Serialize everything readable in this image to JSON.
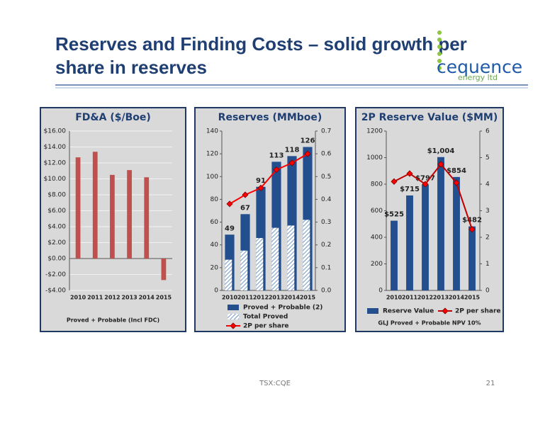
{
  "slide": {
    "title_lines": [
      "Reserves and Finding Costs – solid growth per",
      "share in reserves"
    ],
    "footer": "TSX:CQE",
    "page_number": "21"
  },
  "logo": {
    "name": "cequence",
    "tagline": "energy ltd"
  },
  "chart_data": [
    {
      "type": "bar",
      "title": "FD&A ($/Boe)",
      "xlabel": "Proved + Probable (Incl FDC)",
      "categories": [
        "2010",
        "2011",
        "2012",
        "2013",
        "2014",
        "2015"
      ],
      "values": [
        12.7,
        13.4,
        10.5,
        11.1,
        10.2,
        -2.7
      ],
      "color": "#c0504d",
      "ylim": [
        -4,
        16
      ],
      "yticks": [
        {
          "value": -4,
          "label": "-$4.00"
        },
        {
          "value": -2,
          "label": "-$2.00"
        },
        {
          "value": 0,
          "label": "$0.00"
        },
        {
          "value": 2,
          "label": "$2.00"
        },
        {
          "value": 4,
          "label": "$4.00"
        },
        {
          "value": 6,
          "label": "$6.00"
        },
        {
          "value": 8,
          "label": "$8.00"
        },
        {
          "value": 10,
          "label": "$10.00"
        },
        {
          "value": 12,
          "label": "$12.00"
        },
        {
          "value": 14,
          "label": "$14.00"
        },
        {
          "value": 16,
          "label": "$16.00"
        }
      ],
      "grid": true
    },
    {
      "type": "combo",
      "title": "Reserves (MMboe)",
      "categories": [
        "2010",
        "2011",
        "2012",
        "2013",
        "2014",
        "2015"
      ],
      "series": [
        {
          "name": "Proved + Probable (2)",
          "kind": "bar",
          "color": "#244f8e",
          "values": [
            49,
            67,
            91,
            113,
            118,
            126
          ],
          "data_labels": true
        },
        {
          "name": "Total Proved",
          "kind": "bar",
          "pattern": "hatch",
          "color": "#4f81bd",
          "values": [
            27,
            35,
            46,
            55,
            57,
            62
          ]
        },
        {
          "name": "2P per share",
          "kind": "line",
          "axis": "y2",
          "color": "#ff0000",
          "values": [
            0.38,
            0.42,
            0.45,
            0.53,
            0.56,
            0.6
          ]
        }
      ],
      "ylim": [
        0,
        140
      ],
      "yticks": [
        0,
        20,
        40,
        60,
        80,
        100,
        120,
        140
      ],
      "y2lim": [
        0,
        0.7
      ],
      "y2ticks": [
        {
          "value": 0,
          "label": "0.0"
        },
        0.1,
        0.2,
        0.3,
        0.4,
        0.5,
        0.6,
        0.7
      ],
      "grid": false,
      "legend": "bottom"
    },
    {
      "type": "combo",
      "title": "2P Reserve Value ($MM)",
      "xlabel": "GLJ Proved + Probable NPV 10%",
      "categories": [
        "2010",
        "2011",
        "2012",
        "2013",
        "2014",
        "2015"
      ],
      "series": [
        {
          "name": "Reserve Value",
          "kind": "bar",
          "color": "#244f8e",
          "values": [
            525,
            715,
            797,
            1004,
            854,
            482
          ],
          "value_labels": [
            "$525",
            "$715",
            "$797",
            "$1,004",
            "$854",
            "$482"
          ],
          "data_labels": true
        },
        {
          "name": "2P per share",
          "kind": "line",
          "axis": "y2",
          "color": "#c00000",
          "values": [
            4.1,
            4.4,
            4.0,
            4.75,
            4.05,
            2.3
          ]
        }
      ],
      "ylim": [
        0,
        1200
      ],
      "yticks": [
        0,
        200,
        400,
        600,
        800,
        1000,
        1200
      ],
      "y2lim": [
        0,
        6
      ],
      "y2ticks": [
        0,
        1,
        2,
        3,
        4,
        5,
        6
      ],
      "grid": false,
      "legend": "bottom"
    }
  ]
}
